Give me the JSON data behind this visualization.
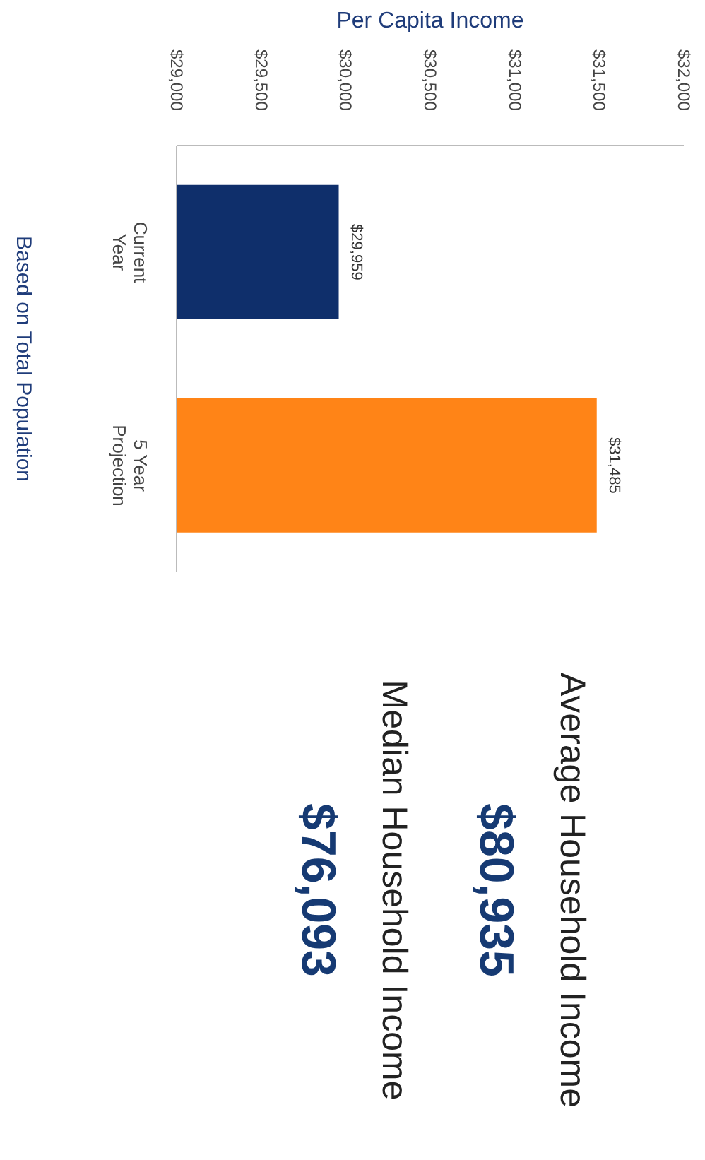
{
  "chart_data": [
    {
      "type": "bar",
      "orientation": "horizontal",
      "xlabel": "Per Capita Income",
      "categories": [
        "Current Year",
        "5 Year Projection"
      ],
      "values": [
        29959,
        31485
      ],
      "colors": [
        "#0f2f6b",
        "#ff8417"
      ],
      "value_labels": [
        "$29,959",
        "$31,485"
      ],
      "xlim": [
        29000,
        32000
      ],
      "xticks": [
        {
          "value": 29000,
          "label": "$29,000"
        },
        {
          "value": 29500,
          "label": "$29,500"
        },
        {
          "value": 30000,
          "label": "$30,000"
        },
        {
          "value": 30500,
          "label": "$30,500"
        },
        {
          "value": 31000,
          "label": "$31,000"
        },
        {
          "value": 31500,
          "label": "$31,500"
        },
        {
          "value": 32000,
          "label": "$32,000"
        }
      ],
      "grid": false,
      "legend": false,
      "annotations": [
        "Based on Total Population"
      ]
    },
    {
      "type": "other",
      "annotations": [
        "Average Household Income",
        "$80,935",
        "Median Household Income",
        "$76,093"
      ]
    }
  ]
}
